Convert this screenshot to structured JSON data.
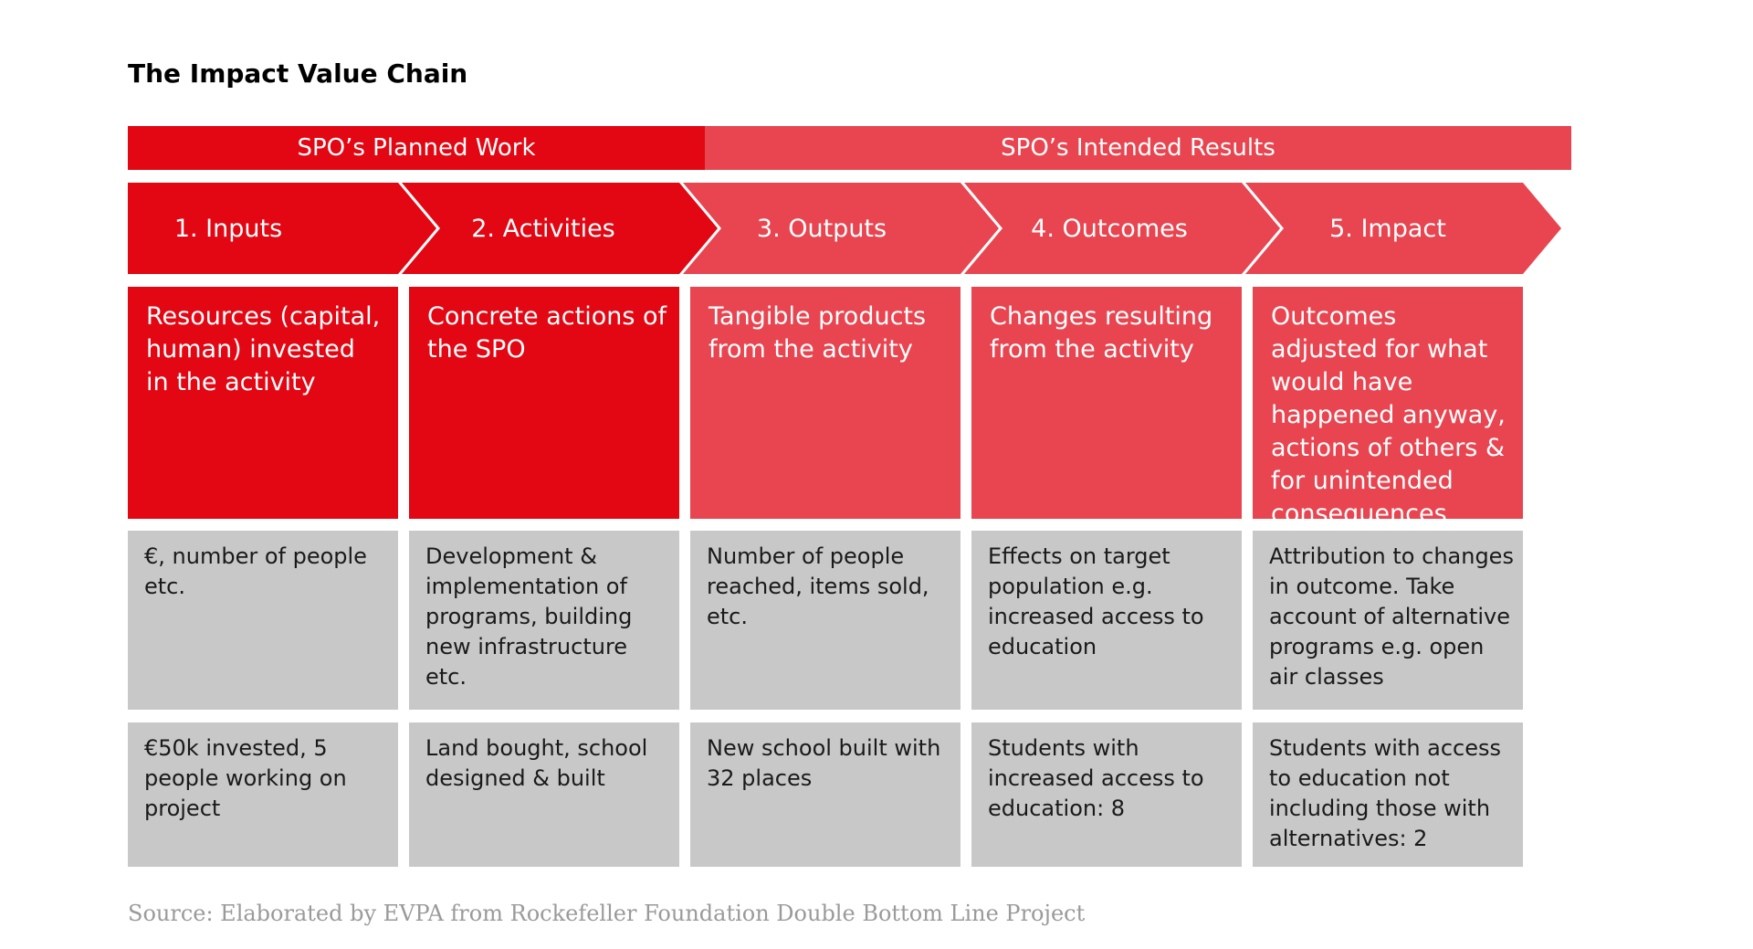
{
  "title": "The Impact Value Chain",
  "colors": {
    "dark_red": "#e30613",
    "light_red": "#e84550",
    "grey": "#c8c8c8"
  },
  "header": {
    "planned": "SPO’s Planned Work",
    "results": "SPO’s Intended Results"
  },
  "stages": [
    {
      "label": "1. Inputs",
      "description": "Resources (capital, human) invested in the activity",
      "metric": "€, number of people etc.",
      "example": "€50k invested, 5 people working on project"
    },
    {
      "label": "2. Activities",
      "description": "Concrete actions of the SPO",
      "metric": "Development & implementation of programs, building new infrastructure etc.",
      "example": "Land bought, school designed & built"
    },
    {
      "label": "3. Outputs",
      "description": "Tangible products from the activity",
      "metric": "Number of people reached, items sold, etc.",
      "example": "New school built with 32 places"
    },
    {
      "label": "4. Outcomes",
      "description": "Changes resulting from the activity",
      "metric": "Effects on target population e.g. increased access to education",
      "example": "Students with increased access to education: 8"
    },
    {
      "label": "5. Impact",
      "description": "Outcomes adjusted for what would have happened anyway, actions of others & for unintended consequences",
      "metric": "Attribution to changes in outcome. Take account of alternative programs e.g. open air classes",
      "example": "Students with access to education not including those with alternatives: 2"
    }
  ],
  "source": "Source: Elaborated by EVPA from Rockefeller Foundation Double Bottom Line Project"
}
